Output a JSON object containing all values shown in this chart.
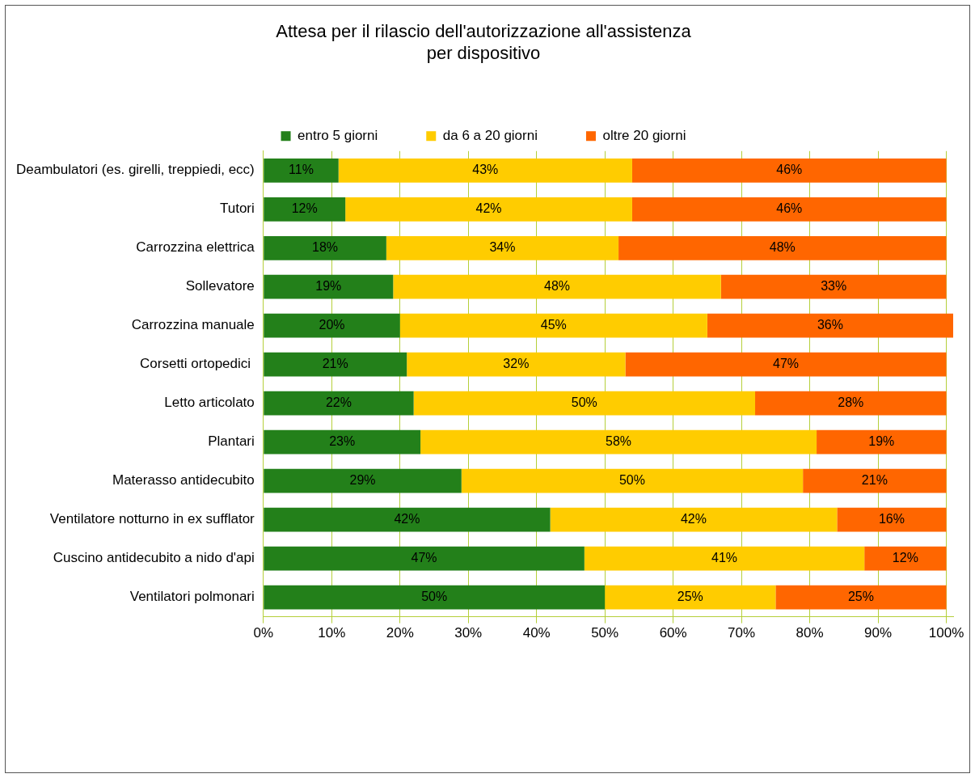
{
  "chart_data": {
    "type": "bar",
    "orientation": "horizontal",
    "stacked": true,
    "title": "Attesa per il rilascio dell'autorizzazione all'assistenza per dispositivo",
    "categories": [
      "Deambulatori (es. girelli, treppiedi, ecc)",
      "Tutori",
      "Carrozzina elettrica",
      "Sollevatore",
      "Carrozzina manuale",
      "Corsetti ortopedici ",
      "Letto articolato",
      "Plantari",
      "Materasso antidecubito",
      "Ventilatore notturno in ex sufflator",
      "Cuscino antidecubito a nido d'api",
      "Ventilatori polmonari"
    ],
    "series": [
      {
        "name": "entro 5 giorni",
        "color": "#23801a",
        "values": [
          11,
          12,
          18,
          19,
          20,
          21,
          22,
          23,
          29,
          42,
          47,
          50
        ],
        "value_labels": [
          "11%",
          "12%",
          "18%",
          "19%",
          "20%",
          "21%",
          "22%",
          "23%",
          "29%",
          "42%",
          "47%",
          "50%"
        ]
      },
      {
        "name": "da 6 a 20 giorni",
        "color": "#ffcc00",
        "values": [
          43,
          42,
          34,
          48,
          45,
          32,
          50,
          58,
          50,
          42,
          41,
          25
        ],
        "value_labels": [
          "43%",
          "42%",
          "34%",
          "48%",
          "45%",
          "32%",
          "50%",
          "58%",
          "50%",
          "42%",
          "41%",
          "25%"
        ]
      },
      {
        "name": "oltre 20 giorni",
        "color": "#ff6600",
        "values": [
          46,
          46,
          48,
          33,
          36,
          47,
          28,
          19,
          21,
          16,
          12,
          25
        ],
        "value_labels": [
          "46%",
          "46%",
          "48%",
          "33%",
          "36%",
          "47%",
          "28%",
          "19%",
          "21%",
          "16%",
          "12%",
          "25%"
        ]
      }
    ],
    "xlim": [
      0,
      101
    ],
    "xticks": [
      {
        "value": 0,
        "label": "0%"
      },
      {
        "value": 10,
        "label": "10%"
      },
      {
        "value": 20,
        "label": "20%"
      },
      {
        "value": 30,
        "label": "30%"
      },
      {
        "value": 40,
        "label": "40%"
      },
      {
        "value": 50,
        "label": "50%"
      },
      {
        "value": 60,
        "label": "60%"
      },
      {
        "value": 70,
        "label": "70%"
      },
      {
        "value": 80,
        "label": "80%"
      },
      {
        "value": 90,
        "label": "90%"
      },
      {
        "value": 100,
        "label": "100%"
      }
    ],
    "grid": "x",
    "legend": "top"
  }
}
